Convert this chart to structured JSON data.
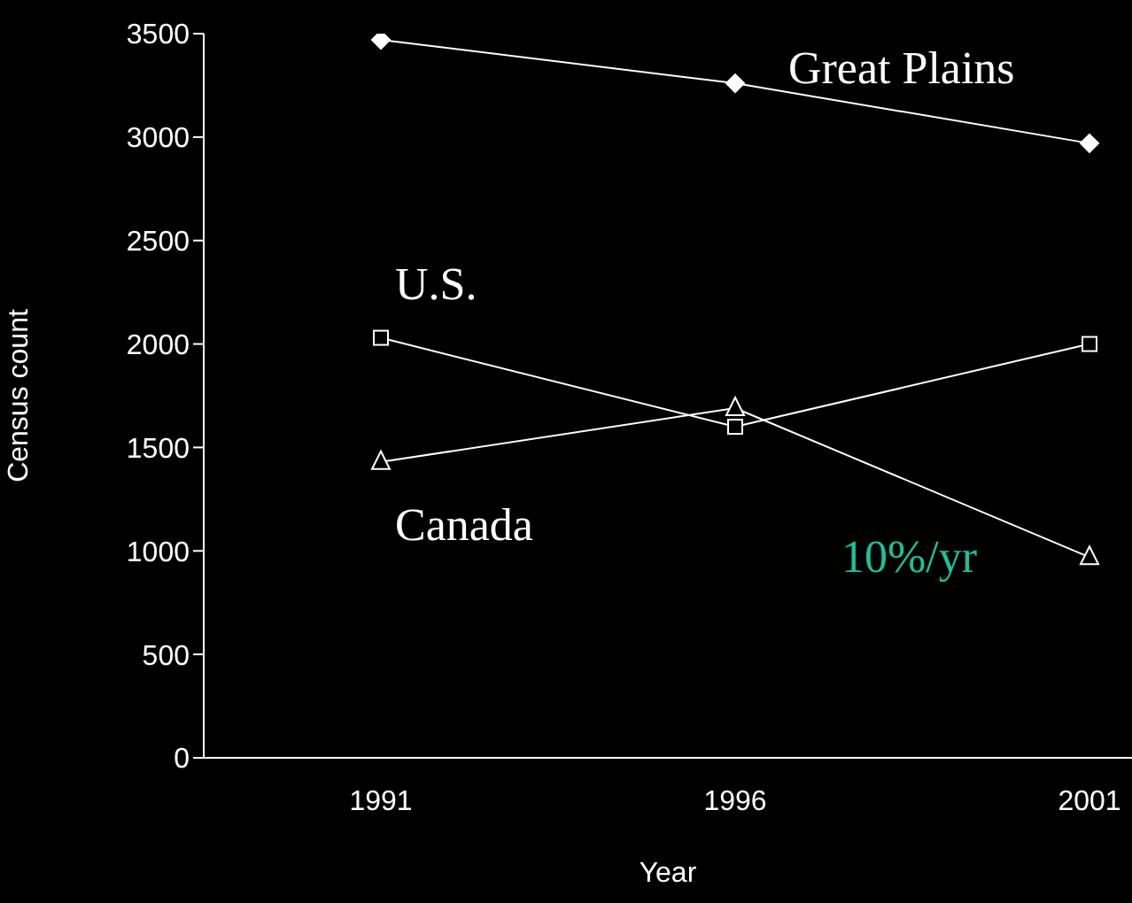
{
  "chart_data": {
    "type": "line",
    "xlabel": "Year",
    "ylabel": "Census count",
    "categories": [
      "1991",
      "1996",
      "2001"
    ],
    "series": [
      {
        "name": "Great Plains",
        "color": "#ffffff",
        "marker": "diamond",
        "values": [
          3470,
          3260,
          2970
        ]
      },
      {
        "name": "U.S.",
        "color": "#ffffff",
        "marker": "square",
        "values": [
          2030,
          1600,
          2000
        ]
      },
      {
        "name": "Canada",
        "color": "#ffffff",
        "marker": "triangle",
        "values": [
          1430,
          1690,
          970
        ]
      }
    ],
    "ylim": [
      0,
      3500
    ],
    "yticks": [
      0,
      500,
      1000,
      1500,
      2000,
      2500,
      3000,
      3500
    ],
    "grid": false,
    "legend": false,
    "annotations": [
      "10%/yr"
    ]
  }
}
